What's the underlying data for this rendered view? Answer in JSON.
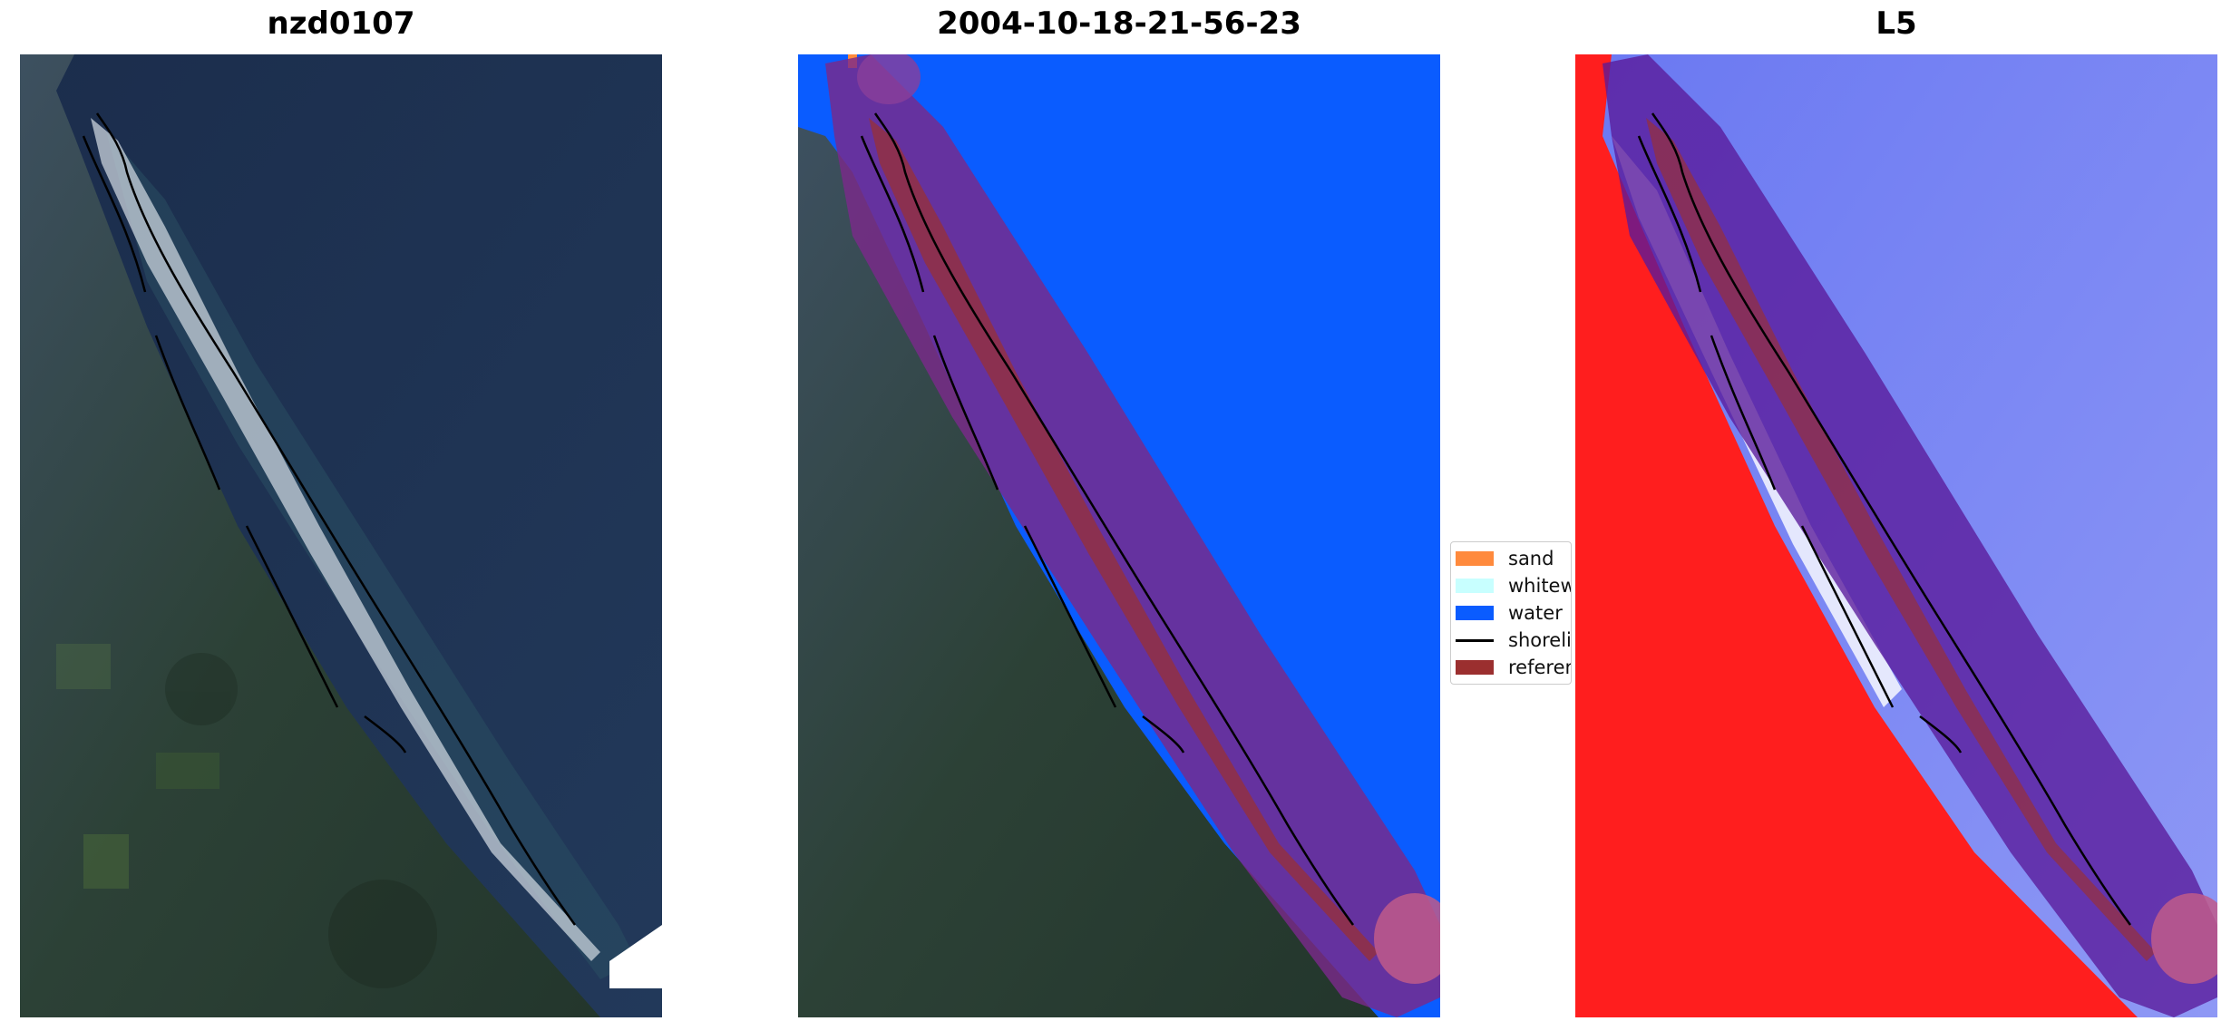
{
  "panels": [
    {
      "id": "left",
      "title": "nzd0107"
    },
    {
      "id": "middle",
      "title": "2004-10-18-21-56-23"
    },
    {
      "id": "right",
      "title": "L5"
    }
  ],
  "legend": {
    "items": [
      {
        "label": "sand",
        "color": "#ff8a3d",
        "kind": "swatch"
      },
      {
        "label": "whitew",
        "color": "#c8ffff",
        "kind": "swatch"
      },
      {
        "label": "water",
        "color": "#0a5cff",
        "kind": "swatch"
      },
      {
        "label": "shorelii",
        "color": "#000000",
        "kind": "line"
      },
      {
        "label": "referen",
        "color": "#9b2f2f",
        "kind": "swatch"
      }
    ]
  },
  "colors": {
    "ocean": "#1e3253",
    "land": "#2a3d35",
    "sand_beach": "#c9d3dc",
    "water_class": "#0a5cff",
    "buffer_overlay": "#7a2a8a",
    "reference": "#9b2f2f",
    "index_land": "#ff1e1e",
    "index_water": "#5a6cf0"
  }
}
